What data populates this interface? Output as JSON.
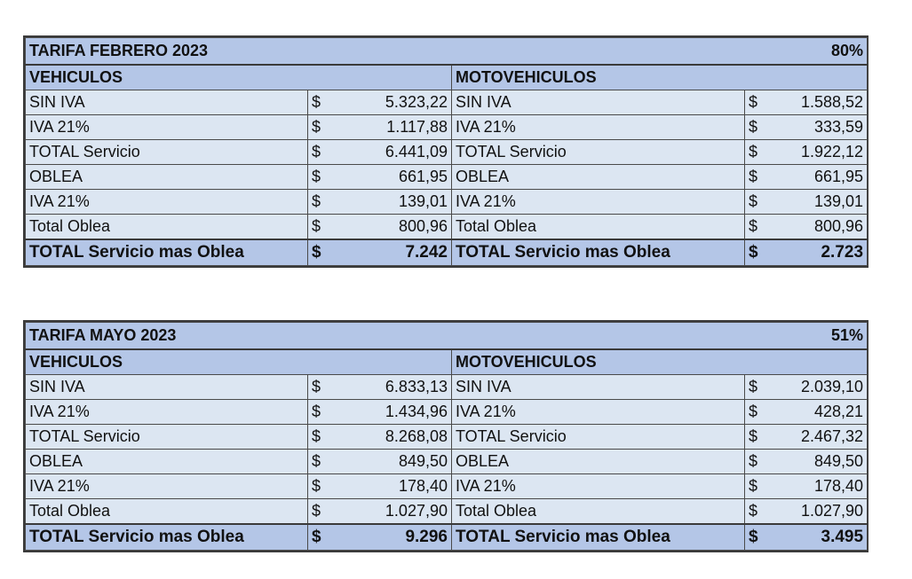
{
  "tables": [
    {
      "title": "TARIFA FEBRERO 2023",
      "percent": "80%",
      "left_header": "VEHICULOS",
      "right_header": "MOTOVEHICULOS",
      "currency": "$",
      "rows": [
        {
          "label": "SIN IVA",
          "veh": "5.323,22",
          "moto": "1.588,52"
        },
        {
          "label": "IVA 21%",
          "veh": "1.117,88",
          "moto": "333,59"
        },
        {
          "label": "TOTAL Servicio",
          "veh": "6.441,09",
          "moto": "1.922,12"
        },
        {
          "label": "OBLEA",
          "veh": "661,95",
          "moto": "661,95"
        },
        {
          "label": "IVA 21%",
          "veh": "139,01",
          "moto": "139,01"
        },
        {
          "label": "Total Oblea",
          "veh": "800,96",
          "moto": "800,96"
        }
      ],
      "total": {
        "label": "TOTAL Servicio mas Oblea",
        "veh": "7.242",
        "moto": "2.723"
      }
    },
    {
      "title": "TARIFA MAYO 2023",
      "percent": "51%",
      "left_header": "VEHICULOS",
      "right_header": "MOTOVEHICULOS",
      "currency": "$",
      "rows": [
        {
          "label": "SIN IVA",
          "veh": "6.833,13",
          "moto": "2.039,10"
        },
        {
          "label": "IVA 21%",
          "veh": "1.434,96",
          "moto": "428,21"
        },
        {
          "label": "TOTAL Servicio",
          "veh": "8.268,08",
          "moto": "2.467,32"
        },
        {
          "label": "OBLEA",
          "veh": "849,50",
          "moto": "849,50"
        },
        {
          "label": "IVA 21%",
          "veh": "178,40",
          "moto": "178,40"
        },
        {
          "label": "Total Oblea",
          "veh": "1.027,90",
          "moto": "1.027,90"
        }
      ],
      "total": {
        "label": "TOTAL Servicio mas Oblea",
        "veh": "9.296",
        "moto": "3.495"
      }
    }
  ]
}
